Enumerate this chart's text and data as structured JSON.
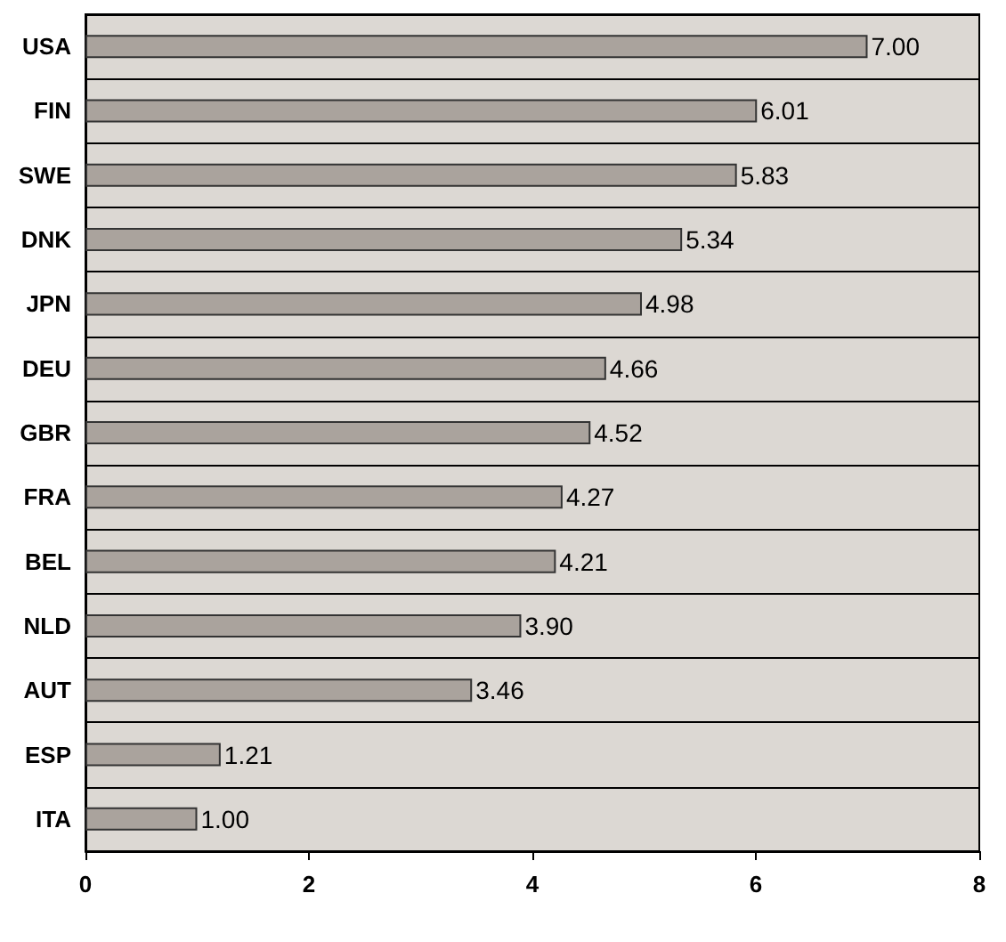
{
  "chart_data": {
    "type": "bar",
    "orientation": "horizontal",
    "categories": [
      "USA",
      "FIN",
      "SWE",
      "DNK",
      "JPN",
      "DEU",
      "GBR",
      "FRA",
      "BEL",
      "NLD",
      "AUT",
      "ESP",
      "ITA"
    ],
    "values": [
      7.0,
      6.01,
      5.83,
      5.34,
      4.98,
      4.66,
      4.52,
      4.27,
      4.21,
      3.9,
      3.46,
      1.21,
      1.0
    ],
    "color": "#aaa39d",
    "xlim": [
      0,
      8
    ],
    "xticks": [
      0,
      2,
      4,
      6,
      8
    ],
    "value_labels": [
      "7.00",
      "6.01",
      "5.83",
      "5.34",
      "4.98",
      "4.66",
      "4.52",
      "4.27",
      "4.21",
      "3.90",
      "3.46",
      "1.21",
      "1.00"
    ],
    "grid": "y"
  }
}
